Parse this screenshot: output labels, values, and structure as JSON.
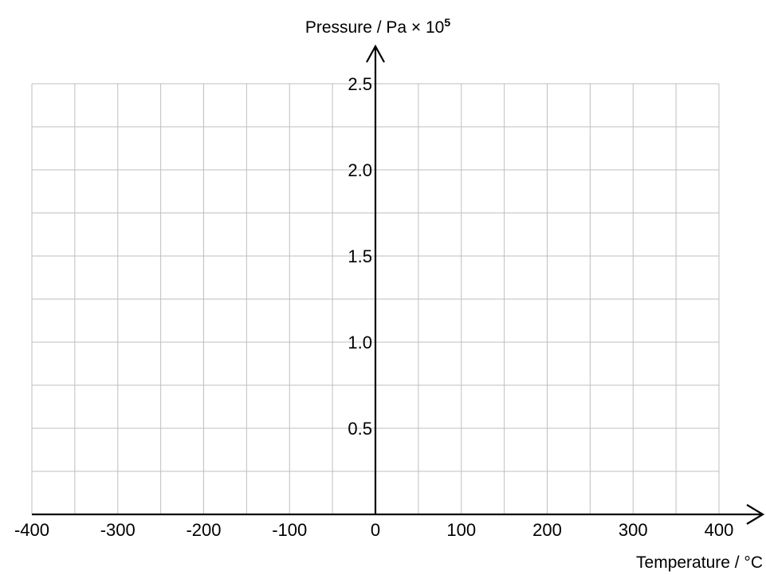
{
  "chart_data": {
    "type": "line",
    "title": "",
    "xlabel": "Temperature / °C",
    "ylabel_main": "Pressure / Pa × 10",
    "ylabel_superscript": "5",
    "xlim": [
      -400,
      400
    ],
    "ylim": [
      0,
      2.5
    ],
    "grid": true,
    "grid_x_step": 50,
    "grid_y_step": 0.25,
    "x_ticks": [
      {
        "value": -400,
        "label": "-400"
      },
      {
        "value": -300,
        "label": "-300"
      },
      {
        "value": -200,
        "label": "-200"
      },
      {
        "value": -100,
        "label": "-100"
      },
      {
        "value": 0,
        "label": "0"
      },
      {
        "value": 100,
        "label": "100"
      },
      {
        "value": 200,
        "label": "200"
      },
      {
        "value": 300,
        "label": "300"
      },
      {
        "value": 400,
        "label": "400"
      }
    ],
    "y_ticks": [
      {
        "value": 0.5,
        "label": "0.5"
      },
      {
        "value": 1.0,
        "label": "1.0"
      },
      {
        "value": 1.5,
        "label": "1.5"
      },
      {
        "value": 2.0,
        "label": "2.0"
      },
      {
        "value": 2.5,
        "label": "2.5"
      }
    ],
    "series": []
  }
}
